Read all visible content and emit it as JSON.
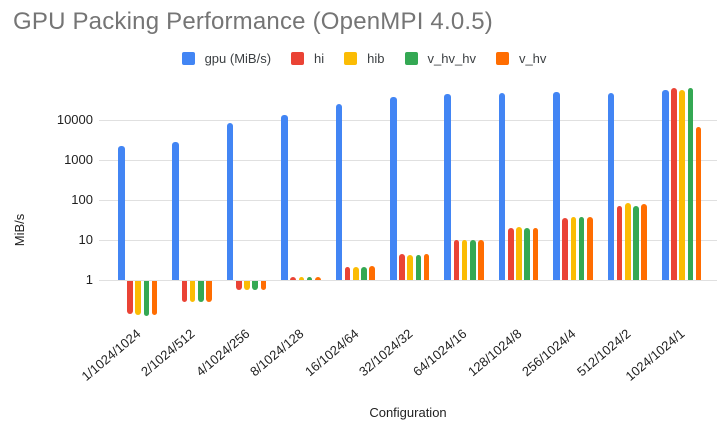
{
  "title": "GPU Packing Performance (OpenMPI 4.0.5)",
  "axes": {
    "x_title": "Configuration",
    "y_title": "MiB/s"
  },
  "colors": {
    "title_text": "#757575",
    "axis_text": "#1f1f1f",
    "gridline": "#e0e0e0",
    "series_blue": "#4285F4",
    "series_red": "#EA4335",
    "series_yellow": "#FBBC04",
    "series_green": "#34A853",
    "series_orange": "#FF6D01"
  },
  "chart_data": {
    "type": "bar",
    "title": "GPU Packing Performance (OpenMPI 4.0.5)",
    "xlabel": "Configuration",
    "ylabel": "MiB/s",
    "y_scale": "log",
    "ylim": [
      0.1,
      75000
    ],
    "grid": true,
    "legend_position": "top",
    "y_ticks": [
      1,
      10,
      100,
      1000,
      10000
    ],
    "categories": [
      "1/1024/1024",
      "2/1024/512",
      "4/1024/256",
      "8/1024/128",
      "16/1024/64",
      "32/1024/32",
      "64/1024/16",
      "128/1024/8",
      "256/1024/4",
      "512/1024/2",
      "1024/1024/1"
    ],
    "series": [
      {
        "name": "gpu (MiB/s)",
        "color": "#4285F4",
        "values": [
          2300,
          2800,
          8600,
          13500,
          25000,
          38000,
          45000,
          48000,
          49000,
          48000,
          56000
        ]
      },
      {
        "name": "hi",
        "color": "#EA4335",
        "values": [
          0.15,
          0.3,
          0.6,
          1.2,
          2.1,
          4.4,
          10,
          20,
          35,
          72,
          62000
        ]
      },
      {
        "name": "hib",
        "color": "#FBBC04",
        "values": [
          0.14,
          0.3,
          0.6,
          1.2,
          2.1,
          4.2,
          10,
          21,
          38,
          82,
          57000
        ]
      },
      {
        "name": "v_hv_hv",
        "color": "#34A853",
        "values": [
          0.13,
          0.3,
          0.6,
          1.2,
          2.1,
          4.3,
          10,
          20,
          37,
          72,
          62000
        ]
      },
      {
        "name": "v_hv",
        "color": "#FF6D01",
        "values": [
          0.14,
          0.3,
          0.6,
          1.2,
          2.2,
          4.5,
          10,
          20,
          38,
          79,
          6800
        ]
      }
    ]
  }
}
